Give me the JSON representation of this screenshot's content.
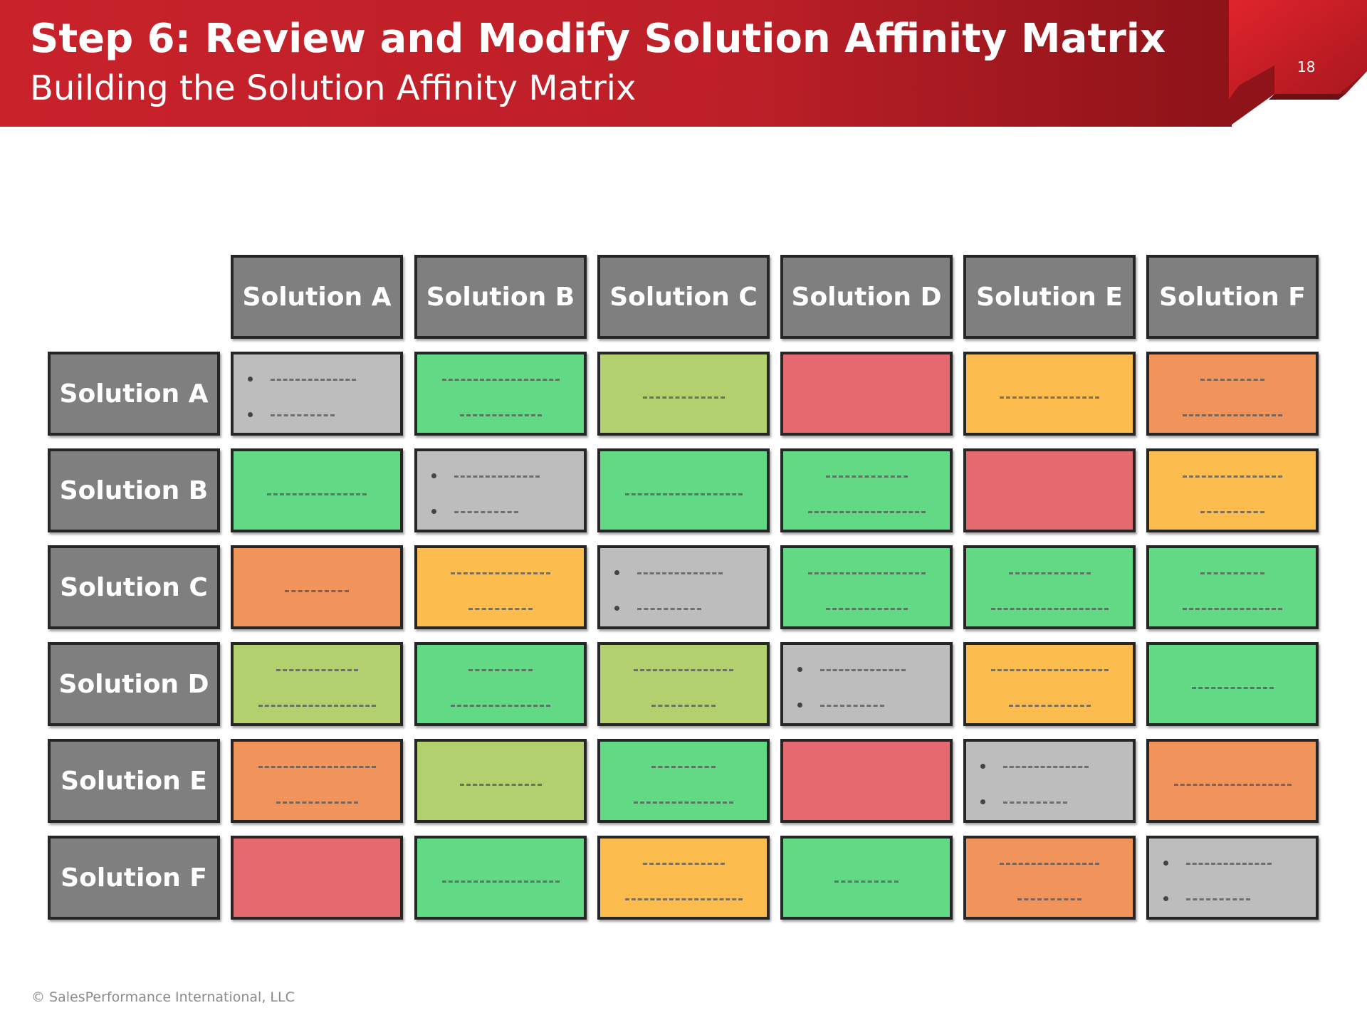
{
  "header": {
    "title": "Step 6: Review and Modify Solution Affinity Matrix",
    "subtitle": "Building the Solution Affinity Matrix",
    "page_number": "18"
  },
  "colors": {
    "banner_red": "#c0202a",
    "banner_dark": "#8e1419",
    "header_gray": "#7f7f7f",
    "green": "#62da85",
    "light_green": "#b2d06e",
    "red": "#e46a6f",
    "yellow": "#fdbd4e",
    "orange": "#f0945c",
    "gray": "#bdbdbd"
  },
  "matrix": {
    "columns": [
      "Solution A",
      "Solution B",
      "Solution C",
      "Solution D",
      "Solution E",
      "Solution F"
    ],
    "rows": [
      {
        "label": "Solution A",
        "cells": [
          "gray",
          "green",
          "light_green",
          "red",
          "yellow",
          "orange"
        ]
      },
      {
        "label": "Solution B",
        "cells": [
          "green",
          "gray",
          "green",
          "green",
          "red",
          "yellow"
        ]
      },
      {
        "label": "Solution C",
        "cells": [
          "orange",
          "yellow",
          "gray",
          "green",
          "green",
          "green"
        ]
      },
      {
        "label": "Solution D",
        "cells": [
          "light_green",
          "green",
          "light_green",
          "gray",
          "yellow",
          "green"
        ]
      },
      {
        "label": "Solution E",
        "cells": [
          "orange",
          "light_green",
          "green",
          "red",
          "gray",
          "orange"
        ]
      },
      {
        "label": "Solution F",
        "cells": [
          "red",
          "green",
          "yellow",
          "green",
          "orange",
          "gray"
        ]
      }
    ]
  },
  "footer": {
    "copyright": "© SalesPerformance International, LLC"
  }
}
